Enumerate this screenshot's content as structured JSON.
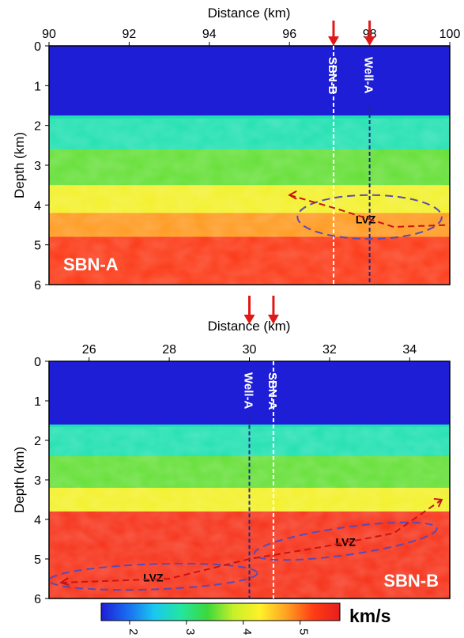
{
  "chart_data": [
    {
      "type": "heatmap",
      "panel_label": "SBN-A",
      "xlabel": "Distance (km)",
      "ylabel": "Depth (km)",
      "xlim": [
        90,
        100
      ],
      "ylim": [
        0,
        6
      ],
      "x_ticks": [
        90,
        92,
        94,
        96,
        98,
        100
      ],
      "y_ticks": [
        0,
        1,
        2,
        3,
        4,
        5,
        6
      ],
      "velocity_layers": [
        {
          "depth_top": 0.0,
          "depth_bottom": 1.75,
          "velocity": 1.5
        },
        {
          "depth_top": 1.75,
          "depth_bottom": 2.6,
          "velocity": 2.8
        },
        {
          "depth_top": 2.6,
          "depth_bottom": 3.5,
          "velocity": 3.5
        },
        {
          "depth_top": 3.5,
          "depth_bottom": 4.2,
          "velocity": 4.2
        },
        {
          "depth_top": 4.2,
          "depth_bottom": 4.8,
          "velocity": 4.8
        },
        {
          "depth_top": 4.8,
          "depth_bottom": 6.0,
          "velocity": 5.3
        }
      ],
      "wells": [
        {
          "label": "SBN-B",
          "x": 97.1,
          "color": "#ffffff",
          "arrow": true
        },
        {
          "label": "Well-A",
          "x": 98.0,
          "color": "#1a2a8c",
          "arrow": true
        }
      ],
      "lvz": {
        "label": "LVZ",
        "ellipse": {
          "cx": 98.0,
          "cy": 4.3,
          "rx": 1.8,
          "ry": 0.55
        },
        "trend": [
          [
            96.0,
            3.75
          ],
          [
            97.2,
            4.1
          ],
          [
            98.6,
            4.55
          ],
          [
            100.0,
            4.5
          ]
        ]
      }
    },
    {
      "type": "heatmap",
      "panel_label": "SBN-B",
      "xlabel": "Distance (km)",
      "ylabel": "Depth (km)",
      "xlim": [
        25.0,
        35.0
      ],
      "ylim": [
        0,
        6
      ],
      "x_ticks": [
        26,
        28,
        30,
        32,
        34
      ],
      "y_ticks": [
        0,
        1,
        2,
        3,
        4,
        5,
        6
      ],
      "velocity_layers": [
        {
          "depth_top": 0.0,
          "depth_bottom": 1.6,
          "velocity": 1.5
        },
        {
          "depth_top": 1.6,
          "depth_bottom": 2.4,
          "velocity": 2.8
        },
        {
          "depth_top": 2.4,
          "depth_bottom": 3.2,
          "velocity": 3.5
        },
        {
          "depth_top": 3.2,
          "depth_bottom": 3.8,
          "velocity": 4.2
        },
        {
          "depth_top": 3.8,
          "depth_bottom": 6.0,
          "velocity": 5.4
        }
      ],
      "wells": [
        {
          "label": "Well-A",
          "x": 30.0,
          "color": "#1a2a8c",
          "arrow": true
        },
        {
          "label": "SBN-A",
          "x": 30.6,
          "color": "#ffffff",
          "arrow": true
        }
      ],
      "lvz": {
        "label": "LVZ",
        "ellipses": [
          {
            "cx": 27.6,
            "cy": 5.45,
            "rx": 2.6,
            "ry": 0.32
          },
          {
            "cx": 32.4,
            "cy": 4.55,
            "rx": 2.3,
            "ry": 0.35
          }
        ],
        "trend": [
          [
            25.3,
            5.6
          ],
          [
            28.0,
            5.5
          ],
          [
            30.0,
            5.0
          ],
          [
            31.8,
            4.7
          ],
          [
            33.6,
            4.35
          ],
          [
            34.8,
            3.5
          ]
        ]
      }
    }
  ],
  "colorbar": {
    "unit_label": "km/s",
    "ticks": [
      2,
      3,
      4,
      5
    ],
    "range": [
      1.5,
      5.7
    ],
    "colors": [
      "#1e1ed6",
      "#1a6cf0",
      "#19c8f0",
      "#22e6a0",
      "#3cd83c",
      "#c8f028",
      "#fff02a",
      "#ffa020",
      "#ff3c14",
      "#e61e1e"
    ]
  }
}
